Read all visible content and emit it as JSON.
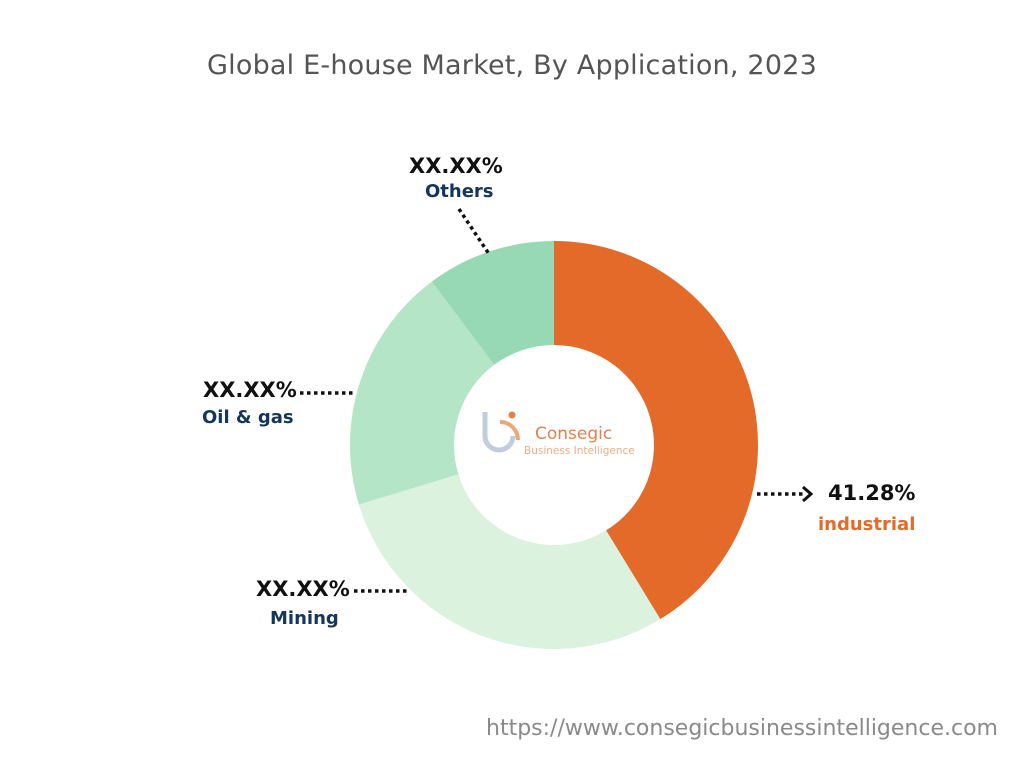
{
  "title": "Global E-house Market, By Application, 2023",
  "chart_data": {
    "type": "pie",
    "title": "Global E-house Market, By Application, 2023",
    "donut": true,
    "slices": [
      {
        "label": "industrial",
        "value_label": "41.28%",
        "value": 41.28,
        "color": "#e36a28",
        "label_color": "#e36a28"
      },
      {
        "label": "Mining",
        "value_label": "XX.XX%",
        "value": 29.0,
        "color": "#daf2de",
        "label_color": "#14365c"
      },
      {
        "label": "Oil & gas",
        "value_label": "XX.XX%",
        "value": 19.5,
        "color": "#b5e5c7",
        "label_color": "#14365c"
      },
      {
        "label": "Others",
        "value_label": "XX.XX%",
        "value": 10.22,
        "color": "#97d9b4",
        "label_color": "#14365c"
      }
    ]
  },
  "watermark": {
    "name": "Consegic",
    "subtitle": "Business Intelligence"
  },
  "source_url": "https://www.consegicbusinessintelligence.com"
}
